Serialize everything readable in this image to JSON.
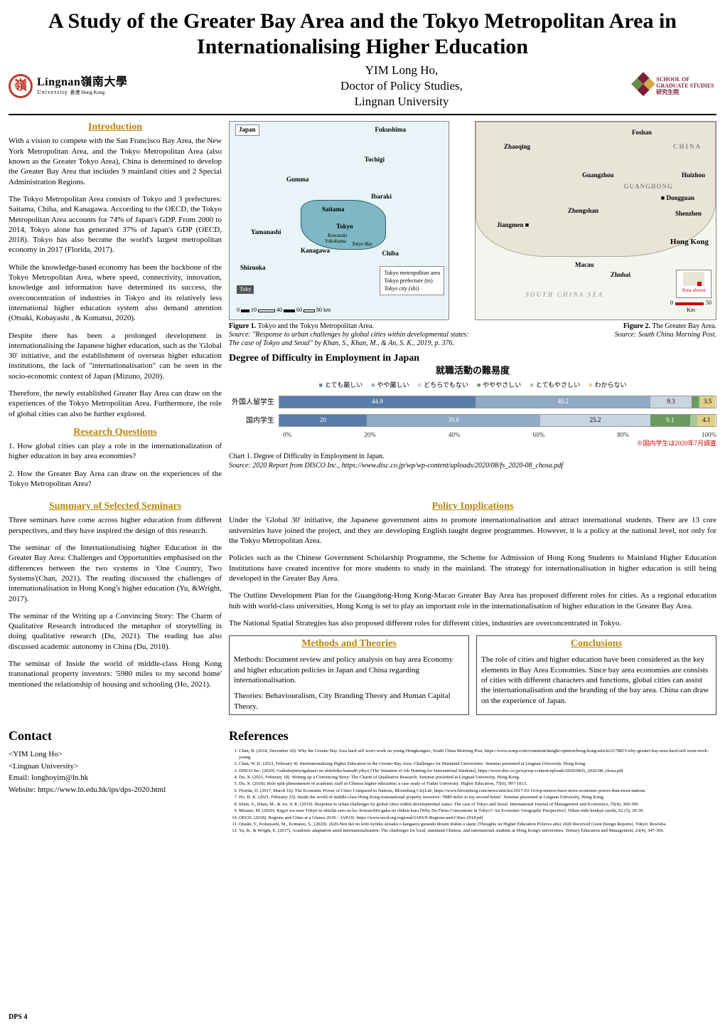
{
  "title": "A Study of the Greater Bay Area and the Tokyo Metropolitan Area in Internationalising Higher Education",
  "author": {
    "name": "YIM Long Ho,",
    "deg": "Doctor of Policy Studies,",
    "uni": "Lingnan University"
  },
  "logos": {
    "lingnan": {
      "main": "Lingnan嶺南大學",
      "sub": "University",
      "hk": "香港 Hong Kong"
    },
    "sgs": {
      "l1": "SCHOOL OF",
      "l2": "GRADUATE STUDIES",
      "l3": "研究生院"
    }
  },
  "sections": {
    "intro": {
      "heading": "Introduction",
      "p1": "With a vision to compete with the San Francisco Bay Area, the New York Metropolitan Area, and the Tokyo Metropolitan Area (also known as the Greater Tokyo Area), China is determined to develop the Greater Bay Area that includes 9 mainland cities and 2 Special Administration Regions.",
      "p2": "The Tokyo Metropolitan Area consists of Tokyo and 3 prefectures: Saitama, Chiba, and Kanagawa. According to the OECD, the Tokyo Metropolitan Area accounts for 74% of Japan's GDP. From 2000 to 2014, Tokyo alone has generated 37% of  Japan's GDP (OECD, 2018). Tokyo has also become the world's largest metropolitan economy in 2017 (Florida, 2017).",
      "p3": "While the knowledge-based economy has been the backbone of the Tokyo Metropolitan Area, where speed, connectivity, innovation, knowledge and information have determined its success, the overconcentration of industries in Tokyo and its relatively less international higher education system also demand attention (Otsuki, Kobayashi , & Komatsu, 2020).",
      "p4": "Despite there has been a prolonged development in internationalising the Japanese higher education, such as the 'Global 30' initiative, and the establishment of  overseas higher education institutions, the lack of \"internationalisation\" can be seen in the socio-economic context of Japan (Mizuno, 2020).",
      "p5": "Therefore, the newly established Greater Bay Area can draw on the experiences of the Tokyo Metropolitan Area. Furthermore, the role of global cities can also be further explored."
    },
    "rq": {
      "heading": "Research Questions",
      "q1": "1. How global cities can play a role in the internationalization of higher education in bay area economies?",
      "q2": "2. How the Greater Bay Area can draw on the experiences of the Tokyo Metropolitan Area?"
    },
    "summary": {
      "heading": "Summary of Selected Seminars",
      "p1": "Three seminars have come across higher education from different perspectives, and they have inspired the design of this research.",
      "p2": "The seminar of the Internationalising higher Education in the Greater Bay Area: Challenges and Opportunities emphasised on the differences between the two systems in 'One Country, Two Systems'(Chan, 2021). The reading discussed the challenges of internationalisation in Hong Kong's higher education (Yu, &Wright, 2017).",
      "p3": "The seminar of the Writing up a Convincing Story: The Charm of Qualitative Research introduced the metaphor of storytelling in doing qualitative research (Du, 2021). The reading has also discussed academic autonomy in China (Du, 2018).",
      "p4": "The seminar of Inside the world of middle-class Hong Kong transnational property investors: '5980 miles to my second home' mentioned the relationship of housing and schooling (Ho, 2021)."
    },
    "policy": {
      "heading": "Policy Implications",
      "p1": "Under the 'Global 30' initiative, the Japanese government aims to promote internationalisation and attract international students. There are 13 core universities have joined the project, and they are developing English taught degree programmes. However, it is a policy at the national level, not only for the Tokyo Metropolitan Area.",
      "p2": "Policies such as the Chinese Government Scholarship Programme, the Scheme for Admission of Hong Kong Students to Mainland Higher Education Institutions have created incentive for more students to study in the mainland. The strategy for internationalisation in higher education is still being developed in the Greater Bay Area.",
      "p3": "The Outline Development Plan for the Guangdong-Hong Kong-Macao Greater Bay Area has proposed different roles for cities. As a regional education hub with world-class universities, Hong Kong is set to play an important role in the internationalisation of higher education in the Greater Bay Area.",
      "p4": "The National Spatial Strategies has also proposed different roles for different cities, industries are overconcentrated in Tokyo."
    },
    "methods": {
      "heading": "Methods and Theories",
      "body1": "Methods: Document review and policy analysis on bay area Economy and higher education policies in Japan and China regarding internationalisation.",
      "body2": "Theories: Behaviouralism, City Branding Theory and Human Capital Theory."
    },
    "concl": {
      "heading": "Conclusions",
      "body": "The role of cities and higher education have been considered as the key elements in Bay Area Economies. Since bay area economies are consists of cities with different characters and functions, global cities can assist the internationalisation and the branding of the bay area.  China can draw on the experience of Japan."
    }
  },
  "figures": {
    "fig1": {
      "labels": {
        "japan": "Japan",
        "fukushima": "Fukushima",
        "tochigi": "Tochigi",
        "gumma": "Gumma",
        "ibaraki": "Ibaraki",
        "saitama": "Saitama",
        "tokyo": "Tokyo",
        "yamanashi": "Yamanashi",
        "kanagawa": "Kanagawa",
        "chiba": "Chiba",
        "shizuoka": "Shizuoka",
        "kawasaki": "Kawasaki",
        "yokohama": "Yokohama",
        "tokyobay": "Tokyo Bay"
      },
      "legend": {
        "l1": "Tokyo metropolitan area",
        "l2": "Tokyo prefecture (to)",
        "l3": "Tokyo city (shi)"
      },
      "toky": "Toky",
      "scale": [
        "0",
        "10",
        "40",
        "60",
        "80 km"
      ],
      "caption_b": "Figure 1. ",
      "caption_t": "Tokyo and the Tokyo Metropolitan Area.",
      "caption_i": "Source: \"Response to urban challenges by global cities within developmental states: The case of Tokyo and Seoul\" by Khan, S., Khan, M., & An, S. K., 2019, p. 376."
    },
    "fig2": {
      "labels": {
        "foshan": "Foshan",
        "zhaoqing": "Zhaoqing",
        "china": "CHINA",
        "guangzhou": "Guangzhou",
        "huizhou": "Huizhou",
        "guangdong": "GUANGDONG",
        "dongguan": "Dongguan",
        "zhongshan": "Zhongshan",
        "shenzhen": "Shenzhen",
        "jiangmen": "Jiangmen",
        "hongkong": "Hong Kong",
        "macau": "Macau",
        "zhuhai": "Zhuhai",
        "scs": "SOUTH CHINA SEA",
        "area": "Area shown"
      },
      "scale": [
        "0",
        "50",
        "Km"
      ],
      "caption_b": "Figure 2. ",
      "caption_t": "The Greater Bay Area.",
      "caption_i": "Source: South China Morning Post."
    },
    "chart1": {
      "title": "Degree of Difficulty in Employment in Japan",
      "jp": "就職活動の難易度",
      "legend": [
        "とても厳しい",
        "やや厳しい",
        "どちらでもない",
        "やややさしい",
        "とてもやさしい",
        "わからない"
      ],
      "legendColors": [
        "#5a7ca8",
        "#8fa9c7",
        "#c8d4e2",
        "#6a9a5e",
        "#a8c79a",
        "#e0d088"
      ],
      "rows": [
        {
          "label": "外国人留学生",
          "segs": [
            {
              "v": 44.9,
              "c": "#5a7ca8"
            },
            {
              "v": 40.2,
              "c": "#8fa9c7"
            },
            {
              "v": 9.3,
              "c": "#c8d4e2",
              "dark": true
            },
            {
              "v": 1.7,
              "c": "#6a9a5e"
            },
            {
              "v": 0.3,
              "c": "#a8c79a"
            },
            {
              "v": 3.5,
              "c": "#e0d088",
              "dark": true
            }
          ]
        },
        {
          "label": "国内学生",
          "segs": [
            {
              "v": 20.0,
              "c": "#5a7ca8"
            },
            {
              "v": 39.8,
              "c": "#8fa9c7"
            },
            {
              "v": 25.2,
              "c": "#c8d4e2",
              "dark": true
            },
            {
              "v": 9.1,
              "c": "#6a9a5e"
            },
            {
              "v": 1.7,
              "c": "#a8c79a"
            },
            {
              "v": 4.1,
              "c": "#e0d088",
              "dark": true
            }
          ]
        }
      ],
      "axis": [
        "0%",
        "20%",
        "40%",
        "60%",
        "80%",
        "100%"
      ],
      "note": "※国内学生は2020年7月調査",
      "caption_b": "Chart 1. ",
      "caption_t": "Degree of Difficulty in Employment in Japan.",
      "caption_s": "Source: 2020 Report from DISCO Inc., https://www.disc.co.jp/wp/wp-content/uploads/2020/08/fs_2020-08_chosa.pdf"
    }
  },
  "contact": {
    "heading": "Contact",
    "name": "<YIM Long Ho>",
    "uni": "<Lingnan University>",
    "email": "Email: longhoyim@ln.hk",
    "web": "Website: https://www.ln.edu.hk/ips/dps-2020.html"
  },
  "refs": {
    "heading": "References",
    "items": [
      "Chan, B. (2018, December 20). Why the Greater Bay Area hard sell won't work on young Hongkongers, South China Morning Post, https://www.scmp.com/comment/insight-opinion/hong-kong/article/2178815/why-greater-bay-area-hard-sell-wont-work-young",
      "Chan, W. K. (2021, February 4). Internationalising Higher Education in the Greater Bay Area: Challenges for Mainland Universities. Seminar presented at Lingnan University, Hong Kong.",
      "DISCO Inc. (2020). Gaikokujinryūgakusei no shūshoku katsudō jōkyō [The Situation of Job Hunting for International Students], https://www.disc.co.jp/wp/wp-content/uploads/2020/08/fs_2020-08_chosa.pdf",
      "Du, X. (2021, Feburary 18). Writing up a Convincing Story: The Charm of Qualitative Research. Seminar presented at Lingnan University, Hong Kong.",
      "Du, X. (2018). Role split phenomenon of academic staff in Chinese higher education: a case study of Fudan University. Higher Education, 75(6), 997-1013.",
      "Florida, D. (2017, March 16). The Economic Power of Cities Compared to Nations, Bloomberg CityLab, https://www.bloomberg.com/news/articles/2017-03-16/top-metros-have-more-economic-power-than-most-nations",
      "Ho, H. K. (2021, Feburary 25). Inside the world of middle-class Hong Kong transnational property investors: '5980 miles to my second home'. Seminar presented at Lingnan University, Hong Kong.",
      "Khan, S., Khan, M., & An, S. K. (2019). Response to urban challenges by global cities within developmental states: The case of Tokyo and Seoul. International Journal of Management and Economics, 55(4), 369-390.",
      "Mizuno, M. (2020). Kigyō wa naze Tōkyō ni shūchū suru no ka: Keizaichiri-gaku no chiken kara [Why Do Firms Concentrate in Tokyo?: An Economic Geography Perspective]. Nihon rōdō kenkyū zasshi, 62 (5), 29-39.",
      "OECD. (2018). Regions and Cities at a Glance 2018 – JAPAN. https://www.oecd.org/regional/JAPAN-Regions-and-Cities-2018.pdf",
      "Otsuki, T., Kobayashi, M., Komatsu, S., (2020). 2020-Nen ikō no kōtō kyōiku seisaku o kangaeru gurando dezain tōshin o ukete [Thoughts on Higher Education Policies after 2020 Received Grant Design Reports]. Tōkyō: Rosōsha.",
      "Yu, B., & Wright, E. (2017). Academic adaptation amid internationalisation: The challenges for local, mainland Chinese, and international students at Hong Kong's universities. Tertiary Education and Management, 23(4), 347-360."
    ]
  },
  "footer": "DPS 4"
}
